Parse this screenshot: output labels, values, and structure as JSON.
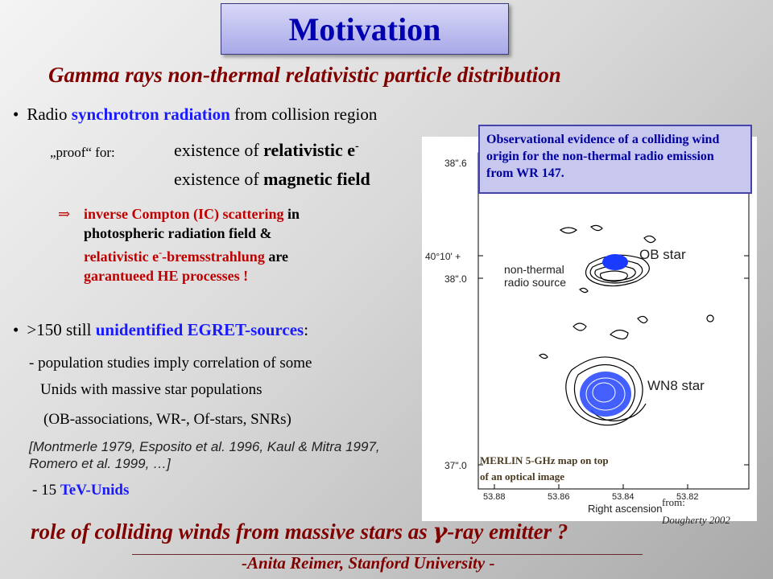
{
  "title": "Motivation",
  "subtitle": "Gamma rays  non-thermal relativistic particle distribution",
  "bullet1": {
    "marker": "•",
    "pre": "Radio ",
    "highlight": "synchrotron radiation",
    "post": " from collision region"
  },
  "proof": {
    "label": "„proof“ for:",
    "line1_pre": "existence of ",
    "line1_bold": "relativistic e",
    "line1_sup": "-",
    "line2_pre": "existence of ",
    "line2_bold": "magnetic field"
  },
  "implication": {
    "arrow": "⇒",
    "l1_red": "inverse Compton (IC) scattering",
    "l1_black": " in",
    "l2": "photospheric radiation field &",
    "l3_red_a": "relativistic e",
    "l3_sup": "-",
    "l3_red_b": "-bremsstrahlung",
    "l3_black": " are",
    "l4_red": "garantueed HE processes !"
  },
  "bullet2": {
    "marker": "•",
    "pre": ">150 still ",
    "highlight": "unidentified EGRET-sources",
    "post": ":"
  },
  "population": {
    "l1": "- population studies imply correlation of some",
    "l2": "Unids with massive star populations",
    "l3": "(OB-associations, WR-, Of-stars, SNRs)"
  },
  "reference": {
    "l1": "[Montmerle 1979, Esposito et al. 1996, Kaul & Mitra 1997,",
    "l2": "Romero et al. 1999, …]"
  },
  "tev": {
    "pre": "- 15 ",
    "highlight": "TeV-Unids"
  },
  "callout": "Observational evidence of a colliding wind origin for the non-thermal radio emission from WR 147.",
  "figure": {
    "y_ticks": [
      "38\".6",
      "40°10' +",
      "38\".0",
      "37\".0"
    ],
    "x_ticks": [
      "53.88",
      "53.86",
      "53.84",
      "53.82"
    ],
    "x_label": "Right ascension",
    "label_ob": "OB star",
    "label_nt1": "non-thermal",
    "label_nt2": "radio source",
    "label_wn8": "WN8 star",
    "merlin1": "MERLIN 5-GHz map on top",
    "merlin2": "of an optical image"
  },
  "source": {
    "l1": "from:",
    "l2": "Dougherty 2002"
  },
  "conclusion": {
    "pre": " role of colliding winds from massive stars as ",
    "gamma": "γ",
    "post": "-ray emitter ?"
  },
  "footer": "-Anita Reimer, Stanford University -",
  "colors": {
    "title": "#0000b0",
    "highlight_blue": "#1a1aff",
    "accent_red": "#c00000",
    "heading_maroon": "#800000",
    "callout_bg": "#c8c8ee"
  }
}
